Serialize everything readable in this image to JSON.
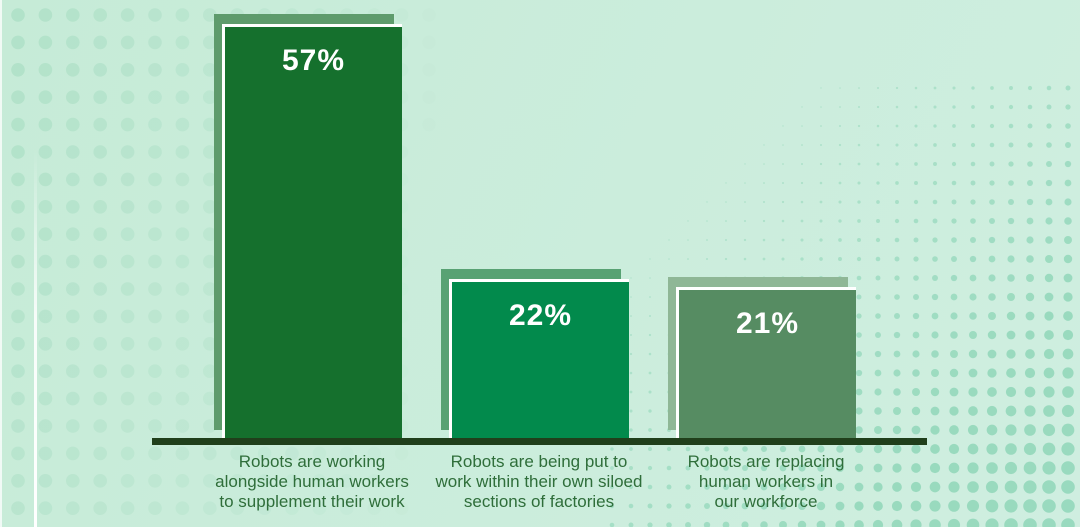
{
  "chart_data": {
    "type": "bar",
    "title": "",
    "categories": [
      "Robots are working\nalongside human workers\nto supplement their work",
      "Robots are being put to\nwork within their own siloed\nsections of factories",
      "Robots are replacing\nhuman workers in\nour workforce"
    ],
    "values": [
      57,
      22,
      21
    ],
    "value_labels": [
      "57%",
      "22%",
      "21%"
    ],
    "bar_colors": [
      "#15702d",
      "#028a4c",
      "#568c62"
    ],
    "bar_shadow_colors": [
      "#5e9b6c",
      "#58a273",
      "#8fb796"
    ],
    "axis_color": "#203f1b",
    "label_color": "#2f6e3a",
    "value_label_color": "#ffffff",
    "background_color": "#c9ecda",
    "dot_color_left": "#9bd8ba",
    "dot_color_right": "#8fd6b8",
    "grid": false,
    "legend": false,
    "axes_labels": "none"
  }
}
